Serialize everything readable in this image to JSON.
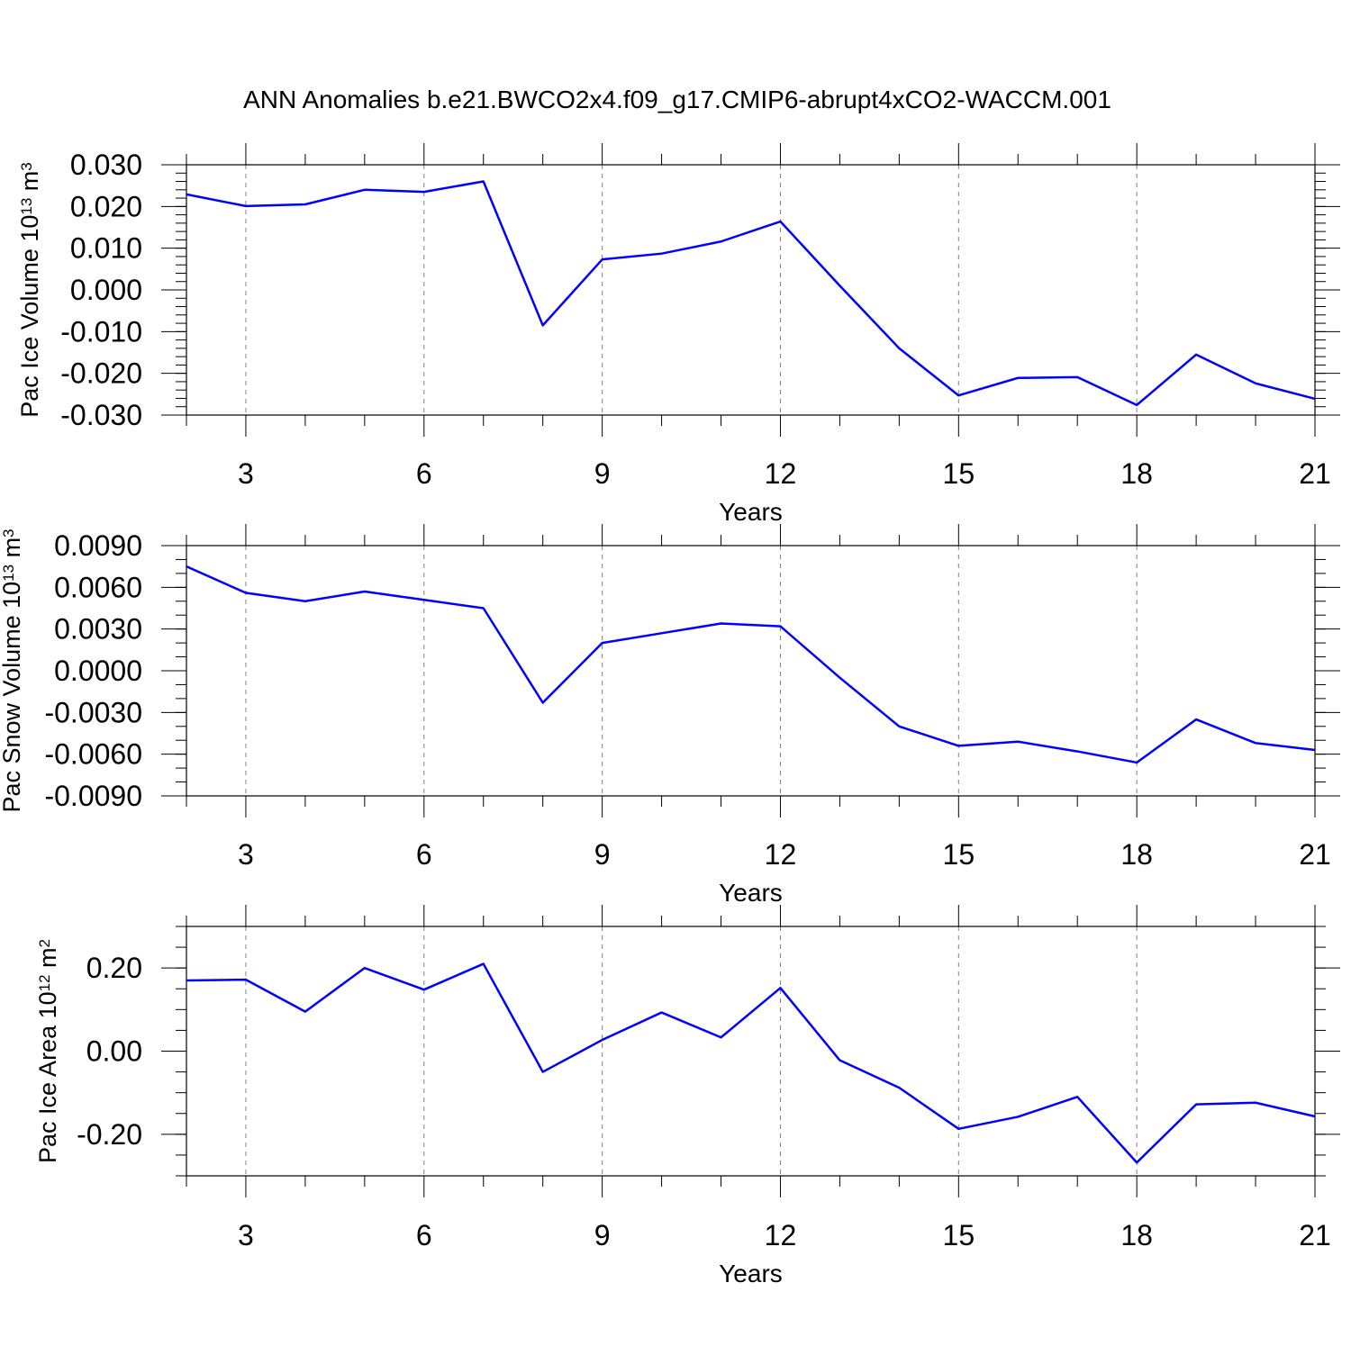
{
  "title": "ANN Anomalies b.e21.BWCO2x4.f09_g17.CMIP6-abrupt4xCO2-WACCM.001",
  "colors": {
    "series": "#0000ff",
    "axis": "#000000",
    "grid": "#808080"
  },
  "chart_data": [
    {
      "type": "line",
      "title": "ANN Anomalies b.e21.BWCO2x4.f09_g17.CMIP6-abrupt4xCO2-WACCM.001",
      "xlabel": "Years",
      "ylabel": {
        "base": "Pac Ice Volume 10",
        "exp": "13",
        "unit": " m",
        "unit_exp": "3"
      },
      "xlim": [
        2,
        21
      ],
      "ylim": [
        -0.03,
        0.03
      ],
      "x_ticks": [
        3,
        6,
        9,
        12,
        15,
        18,
        21
      ],
      "x_tick_labels": [
        "3",
        "6",
        "9",
        "12",
        "15",
        "18",
        "21"
      ],
      "y_ticks": [
        -0.03,
        -0.02,
        -0.01,
        0,
        0.01,
        0.02,
        0.03
      ],
      "y_tick_labels": [
        "-0.030",
        "-0.020",
        "-0.010",
        "0.000",
        "0.010",
        "0.020",
        "0.030"
      ],
      "y_minor_step": 0.002,
      "grid": "vertical-dashed-at-major-x",
      "series": [
        {
          "name": "Pac Ice Volume",
          "x": [
            2,
            3,
            4,
            5,
            6,
            7,
            8,
            9,
            10,
            11,
            12,
            13,
            14,
            15,
            16,
            17,
            18,
            19,
            20,
            21
          ],
          "values": [
            0.0229,
            0.0201,
            0.0205,
            0.024,
            0.0235,
            0.026,
            -0.0085,
            0.0073,
            0.0087,
            0.0116,
            0.0164,
            0.001,
            -0.014,
            -0.0253,
            -0.0211,
            -0.0209,
            -0.0276,
            -0.0155,
            -0.0224,
            -0.0261
          ]
        }
      ]
    },
    {
      "type": "line",
      "xlabel": "Years",
      "ylabel": {
        "base": "Pac Snow Volume 10",
        "exp": "13",
        "unit": " m",
        "unit_exp": "3"
      },
      "xlim": [
        2,
        21
      ],
      "ylim": [
        -0.009,
        0.009
      ],
      "x_ticks": [
        3,
        6,
        9,
        12,
        15,
        18,
        21
      ],
      "x_tick_labels": [
        "3",
        "6",
        "9",
        "12",
        "15",
        "18",
        "21"
      ],
      "y_ticks": [
        -0.009,
        -0.006,
        -0.003,
        0,
        0.003,
        0.006,
        0.009
      ],
      "y_tick_labels": [
        "-0.0090",
        "-0.0060",
        "-0.0030",
        "0.0000",
        "0.0030",
        "0.0060",
        "0.0090"
      ],
      "y_minor_step": 0.001,
      "grid": "vertical-dashed-at-major-x",
      "series": [
        {
          "name": "Pac Snow Volume",
          "x": [
            2,
            3,
            4,
            5,
            6,
            7,
            8,
            9,
            10,
            11,
            12,
            13,
            14,
            15,
            16,
            17,
            18,
            19,
            20,
            21
          ],
          "values": [
            0.0075,
            0.0056,
            0.005,
            0.0057,
            0.0051,
            0.0045,
            -0.0023,
            0.002,
            0.0027,
            0.0034,
            0.0032,
            -0.0005,
            -0.004,
            -0.0054,
            -0.0051,
            -0.0058,
            -0.0066,
            -0.0035,
            -0.0052,
            -0.0057
          ]
        }
      ]
    },
    {
      "type": "line",
      "xlabel": "Years",
      "ylabel": {
        "base": "Pac Ice Area 10",
        "exp": "12",
        "unit": " m",
        "unit_exp": "2"
      },
      "xlim": [
        2,
        21
      ],
      "ylim": [
        -0.3,
        0.3
      ],
      "x_ticks": [
        3,
        6,
        9,
        12,
        15,
        18,
        21
      ],
      "x_tick_labels": [
        "3",
        "6",
        "9",
        "12",
        "15",
        "18",
        "21"
      ],
      "y_ticks": [
        -0.2,
        0,
        0.2
      ],
      "y_tick_labels": [
        "-0.20",
        "0.00",
        "0.20"
      ],
      "y_minor_step": 0.05,
      "grid": "vertical-dashed-at-major-x",
      "series": [
        {
          "name": "Pac Ice Area",
          "x": [
            2,
            3,
            4,
            5,
            6,
            7,
            8,
            9,
            10,
            11,
            12,
            13,
            14,
            15,
            16,
            17,
            18,
            19,
            20,
            21
          ],
          "values": [
            0.17,
            0.172,
            0.095,
            0.2,
            0.148,
            0.21,
            -0.05,
            0.027,
            0.093,
            0.033,
            0.152,
            -0.022,
            -0.088,
            -0.187,
            -0.158,
            -0.11,
            -0.268,
            -0.128,
            -0.124,
            -0.157
          ]
        }
      ]
    }
  ]
}
